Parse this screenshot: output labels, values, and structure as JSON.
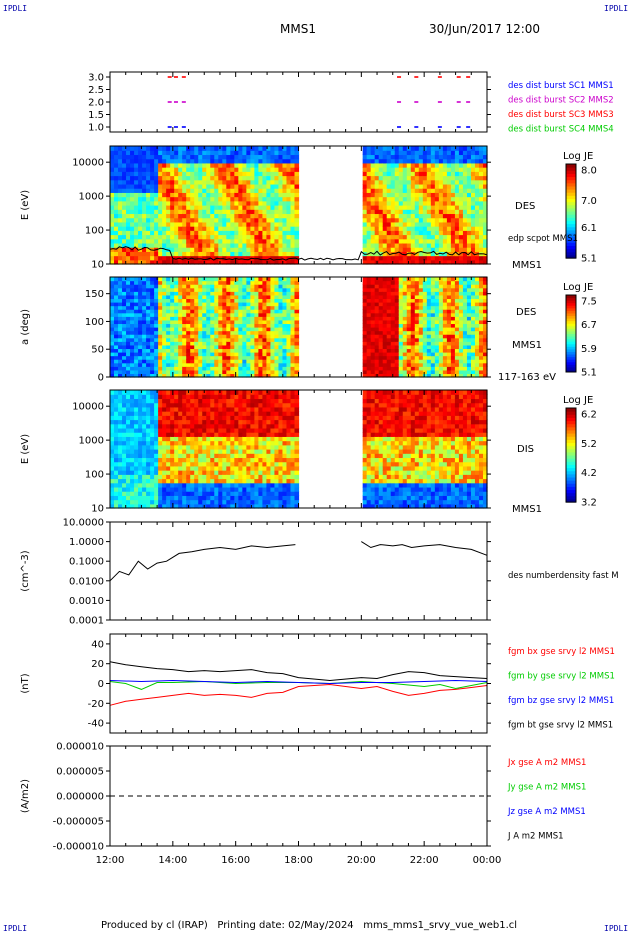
{
  "header": {
    "corner_tl": "IPDLI",
    "corner_tr": "IPDLI",
    "corner_bl": "IPDLI",
    "corner_br": "IPDLI",
    "title": "MMS1",
    "datetime": "30/Jun/2017 12:00"
  },
  "footer": {
    "produced": "Produced by cl (IRAP)",
    "printing": "Printing date: 02/May/2024",
    "script": "mms_mms1_srvy_vue_web1.cl"
  },
  "colors": {
    "blue": "#0000ff",
    "magenta": "#cc00cc",
    "red": "#ff0000",
    "green": "#00cc00",
    "black": "#000000",
    "corner": "#0000aa"
  },
  "chart_data": [
    {
      "id": "burst",
      "type": "scatter",
      "ylim": [
        0.8,
        3.2
      ],
      "y_ticks": [
        "3.0",
        "2.5",
        "2.0",
        "1.5",
        "1.0"
      ],
      "y_tick_values": [
        3.0,
        2.5,
        2.0,
        1.5,
        1.0
      ],
      "series": [
        {
          "name": "des dist burst SC1 MMS1",
          "color": "#0000ff",
          "y": 1.0,
          "x": [
            13.9,
            14.1,
            14.35,
            21.2,
            21.75,
            22.5,
            23.1,
            23.4
          ]
        },
        {
          "name": "des dist burst SC2 MMS2",
          "color": "#cc00cc",
          "y": 2.0,
          "x": [
            13.9,
            14.1,
            14.35,
            21.2,
            21.75,
            22.5,
            23.1,
            23.4
          ]
        },
        {
          "name": "des dist burst SC3 MMS3",
          "color": "#ff0000",
          "y": 3.0,
          "x": [
            13.9,
            14.1,
            14.35,
            21.2,
            21.75,
            22.5,
            23.1,
            23.4
          ]
        },
        {
          "name": "des dist burst SC4 MMS4",
          "color": "#00cc00",
          "y": 3.5,
          "x": []
        }
      ]
    },
    {
      "id": "des_e",
      "type": "heatmap",
      "ylabel": "E (eV)",
      "y_ticks": [
        "10000",
        "1000",
        "100",
        "10"
      ],
      "y_tick_values": [
        10000,
        1000,
        100,
        10
      ],
      "ylim": [
        10,
        30000
      ],
      "yscale": "log",
      "right_labels": [
        "DES",
        "edp scpot MMS1",
        "MMS1"
      ],
      "colorbar": {
        "title": "Log JE",
        "ticks": [
          "8.0",
          "7.0",
          "6.1",
          "5.1"
        ],
        "range": [
          5.1,
          8.2
        ]
      },
      "gap": [
        18.0,
        20.0
      ]
    },
    {
      "id": "des_pa",
      "type": "heatmap",
      "ylabel": "a (deg)",
      "y_ticks": [
        "150",
        "100",
        "50",
        "0"
      ],
      "y_tick_values": [
        150,
        100,
        50,
        0
      ],
      "ylim": [
        0,
        180
      ],
      "right_labels": [
        "DES",
        "MMS1",
        "117-163 eV"
      ],
      "colorbar": {
        "title": "Log JE",
        "ticks": [
          "7.5",
          "6.7",
          "5.9",
          "5.1"
        ],
        "range": [
          5.1,
          7.7
        ]
      },
      "gap": [
        18.0,
        20.0
      ]
    },
    {
      "id": "dis_e",
      "type": "heatmap",
      "ylabel": "E (eV)",
      "y_ticks": [
        "10000",
        "1000",
        "100",
        "10"
      ],
      "y_tick_values": [
        10000,
        1000,
        100,
        10
      ],
      "ylim": [
        10,
        30000
      ],
      "yscale": "log",
      "right_labels": [
        "DIS",
        "MMS1"
      ],
      "colorbar": {
        "title": "Log JE",
        "ticks": [
          "6.2",
          "5.2",
          "4.2",
          "3.2"
        ],
        "range": [
          3.2,
          6.4
        ]
      },
      "gap": [
        18.0,
        20.0
      ]
    },
    {
      "id": "density",
      "type": "line",
      "ylabel": "(cm^-3)",
      "y_ticks": [
        "10.0000",
        "1.0000",
        "0.1000",
        "0.0100",
        "0.0010",
        "0.0001"
      ],
      "y_tick_values": [
        10,
        1,
        0.1,
        0.01,
        0.001,
        0.0001
      ],
      "ylim": [
        0.0001,
        10
      ],
      "yscale": "log",
      "series": [
        {
          "name": "des numberdensity fast M",
          "color": "#000000",
          "x": [
            12.0,
            12.3,
            12.6,
            12.9,
            13.2,
            13.5,
            13.8,
            14.2,
            14.6,
            15.0,
            15.5,
            16.0,
            16.5,
            17.0,
            17.5,
            17.9,
            20.0,
            20.3,
            20.6,
            21.0,
            21.3,
            21.6,
            22.0,
            22.5,
            23.0,
            23.5,
            24.0
          ],
          "y": [
            0.01,
            0.03,
            0.02,
            0.1,
            0.04,
            0.08,
            0.1,
            0.25,
            0.3,
            0.4,
            0.5,
            0.4,
            0.6,
            0.5,
            0.6,
            0.7,
            1.0,
            0.5,
            0.7,
            0.6,
            0.7,
            0.5,
            0.6,
            0.7,
            0.5,
            0.4,
            0.2
          ]
        }
      ]
    },
    {
      "id": "fgm",
      "type": "line",
      "ylabel": "(nT)",
      "y_ticks": [
        "40",
        "20",
        "0",
        "-20",
        "-40"
      ],
      "y_tick_values": [
        40,
        20,
        0,
        -20,
        -40
      ],
      "ylim": [
        -50,
        50
      ],
      "series": [
        {
          "name": "fgm bx gse srvy l2 MMS1",
          "color": "#ff0000",
          "x": [
            12.0,
            12.5,
            13.0,
            13.5,
            14.0,
            14.5,
            15.0,
            15.5,
            16.0,
            16.5,
            17.0,
            17.5,
            18.0,
            19.0,
            20.0,
            20.5,
            21.0,
            21.5,
            22.0,
            22.5,
            23.0,
            23.5,
            24.0
          ],
          "y": [
            -22,
            -18,
            -16,
            -14,
            -12,
            -10,
            -12,
            -11,
            -12,
            -14,
            -10,
            -9,
            -3,
            -1,
            -5,
            -3,
            -8,
            -12,
            -10,
            -7,
            -6,
            -4,
            -2
          ]
        },
        {
          "name": "fgm by gse srvy l2 MMS1",
          "color": "#00cc00",
          "x": [
            12.0,
            12.5,
            13.0,
            13.5,
            14.0,
            15.0,
            16.0,
            17.0,
            18.0,
            19.0,
            20.0,
            21.0,
            22.0,
            22.5,
            23.0,
            23.5,
            24.0
          ],
          "y": [
            2,
            0,
            -6,
            1,
            1,
            2,
            0,
            1,
            1,
            0,
            2,
            0,
            -3,
            -1,
            -5,
            -2,
            1
          ]
        },
        {
          "name": "fgm bz gse srvy l2 MMS1",
          "color": "#0000ff",
          "x": [
            12.0,
            13.0,
            14.0,
            15.0,
            16.0,
            17.0,
            18.0,
            19.0,
            20.0,
            21.0,
            22.0,
            23.0,
            24.0
          ],
          "y": [
            3,
            2,
            3,
            2,
            1,
            2,
            1,
            0,
            1,
            1,
            2,
            3,
            2
          ]
        },
        {
          "name": "fgm bt gse srvy l2 MMS1",
          "color": "#000000",
          "x": [
            12.0,
            12.5,
            13.0,
            13.5,
            14.0,
            14.5,
            15.0,
            15.5,
            16.0,
            16.5,
            17.0,
            17.5,
            18.0,
            19.0,
            20.0,
            20.5,
            21.0,
            21.5,
            22.0,
            22.5,
            23.0,
            23.5,
            24.0
          ],
          "y": [
            22,
            19,
            17,
            15,
            14,
            12,
            13,
            12,
            13,
            14,
            11,
            10,
            6,
            3,
            6,
            5,
            9,
            12,
            11,
            8,
            7,
            6,
            5
          ]
        }
      ]
    },
    {
      "id": "current",
      "type": "line",
      "ylabel": "(A/m2)",
      "y_ticks": [
        "0.000010",
        "0.000005",
        "0.000000",
        "-0.000005",
        "-0.000010"
      ],
      "y_tick_values": [
        1e-05,
        5e-06,
        0,
        -5e-06,
        -1e-05
      ],
      "ylim": [
        -1e-05,
        1e-05
      ],
      "x_ticks": [
        "12:00",
        "14:00",
        "16:00",
        "18:00",
        "20:00",
        "22:00",
        "00:00"
      ],
      "x_tick_values": [
        12,
        14,
        16,
        18,
        20,
        22,
        24
      ],
      "xlim": [
        12,
        24
      ],
      "series": [
        {
          "name": "Jx gse A m2 MMS1",
          "color": "#ff0000",
          "x": [],
          "y": []
        },
        {
          "name": "Jy gse A m2 MMS1",
          "color": "#00cc00",
          "x": [],
          "y": []
        },
        {
          "name": "Jz gse A m2 MMS1",
          "color": "#0000ff",
          "x": [],
          "y": []
        },
        {
          "name": "J A m2 MMS1",
          "color": "#000000",
          "x": [],
          "y": []
        }
      ]
    }
  ]
}
